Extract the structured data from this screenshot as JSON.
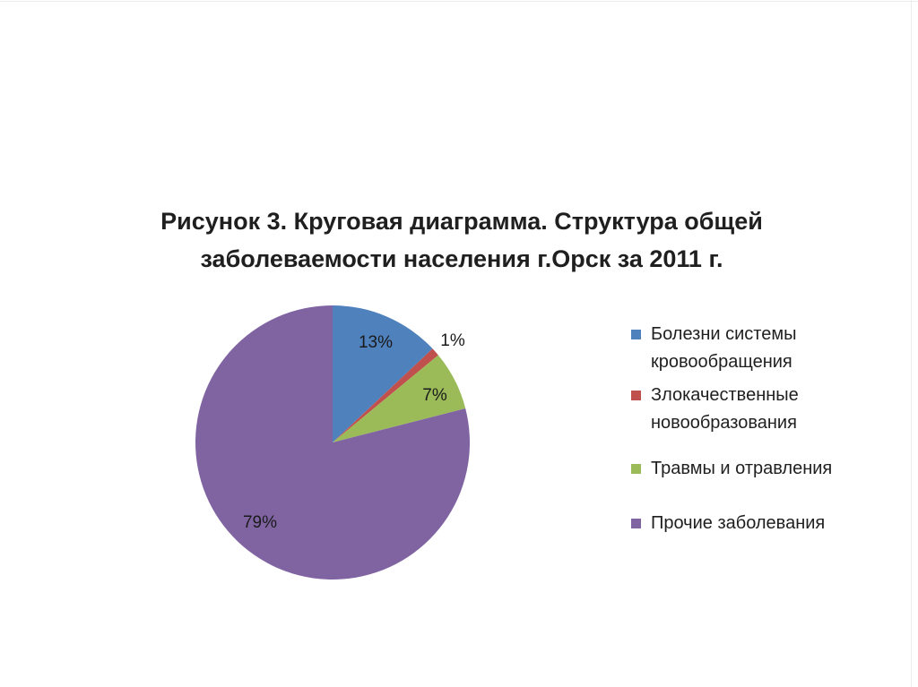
{
  "chart_data": {
    "type": "pie",
    "title_lines": [
      "Рисунок 3. Круговая диаграмма. Структура общей",
      "заболеваемости населения г.Орск за 2011 г."
    ],
    "legend_position": "right",
    "start_angle_deg": 0,
    "direction": "clockwise",
    "slices": [
      {
        "name_lines": [
          "Болезни системы",
          "кровообращения"
        ],
        "value": 13,
        "label": "13%",
        "color": "#4f81bd"
      },
      {
        "name_lines": [
          "Злокачественные",
          "новообразования"
        ],
        "value": 1,
        "label": "1%",
        "color": "#c0504d"
      },
      {
        "name_lines": [
          "Травмы и отравления"
        ],
        "value": 7,
        "label": "7%",
        "color": "#9bbb59"
      },
      {
        "name_lines": [
          "Прочие заболевания"
        ],
        "value": 79,
        "label": "79%",
        "color": "#8064a2"
      }
    ]
  }
}
